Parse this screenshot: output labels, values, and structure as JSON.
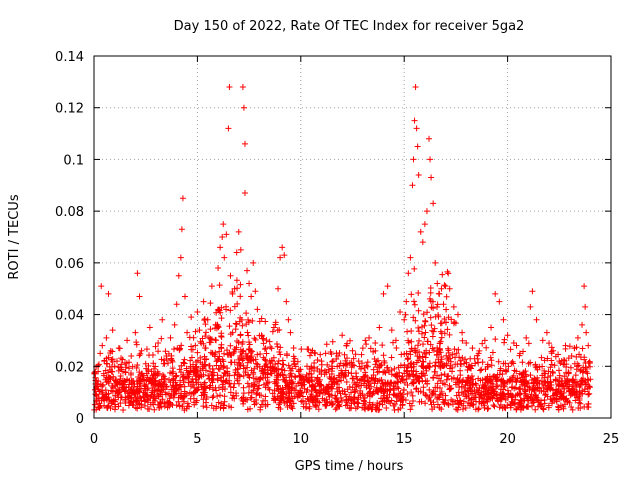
{
  "chart_data": {
    "type": "scatter",
    "title": "Day 150 of 2022, Rate Of TEC Index for receiver 5ga2",
    "xlabel": "GPS time / hours",
    "ylabel": "ROTI / TECUs",
    "xlim": [
      0,
      25
    ],
    "ylim": [
      0,
      0.14
    ],
    "xticks": [
      "0",
      "5",
      "10",
      "15",
      "20",
      "25"
    ],
    "yticks": [
      "0",
      "0.02",
      "0.04",
      "0.06",
      "0.08",
      "0.1",
      "0.12",
      "0.14"
    ],
    "grid": true,
    "marker": "plus",
    "color": "#ff0000",
    "series": [
      {
        "points": [
          [
            0.1,
            0.012
          ],
          [
            0.2,
            0.018
          ],
          [
            0.3,
            0.025
          ],
          [
            0.35,
            0.051
          ],
          [
            0.4,
            0.028
          ],
          [
            0.5,
            0.022
          ],
          [
            0.6,
            0.031
          ],
          [
            0.7,
            0.048
          ],
          [
            0.8,
            0.015
          ],
          [
            0.9,
            0.034
          ],
          [
            1.0,
            0.02
          ],
          [
            1.2,
            0.027
          ],
          [
            1.4,
            0.018
          ],
          [
            1.6,
            0.03
          ],
          [
            1.8,
            0.024
          ],
          [
            2.0,
            0.033
          ],
          [
            2.1,
            0.056
          ],
          [
            2.2,
            0.047
          ],
          [
            2.3,
            0.026
          ],
          [
            2.5,
            0.021
          ],
          [
            2.7,
            0.035
          ],
          [
            2.9,
            0.019
          ],
          [
            3.1,
            0.029
          ],
          [
            3.3,
            0.038
          ],
          [
            3.5,
            0.024
          ],
          [
            3.7,
            0.031
          ],
          [
            3.9,
            0.036
          ],
          [
            4.0,
            0.044
          ],
          [
            4.1,
            0.055
          ],
          [
            4.2,
            0.062
          ],
          [
            4.25,
            0.073
          ],
          [
            4.3,
            0.085
          ],
          [
            4.4,
            0.047
          ],
          [
            4.5,
            0.033
          ],
          [
            4.7,
            0.039
          ],
          [
            4.9,
            0.028
          ],
          [
            5.0,
            0.041
          ],
          [
            5.1,
            0.034
          ],
          [
            5.3,
            0.045
          ],
          [
            5.5,
            0.038
          ],
          [
            5.7,
            0.051
          ],
          [
            5.9,
            0.036
          ],
          [
            6.0,
            0.058
          ],
          [
            6.1,
            0.066
          ],
          [
            6.2,
            0.07
          ],
          [
            6.25,
            0.075
          ],
          [
            6.3,
            0.062
          ],
          [
            6.4,
            0.071
          ],
          [
            6.5,
            0.112
          ],
          [
            6.55,
            0.128
          ],
          [
            6.6,
            0.055
          ],
          [
            6.7,
            0.048
          ],
          [
            6.8,
            0.05
          ],
          [
            6.9,
            0.064
          ],
          [
            7.0,
            0.072
          ],
          [
            7.1,
            0.065
          ],
          [
            7.2,
            0.128
          ],
          [
            7.25,
            0.12
          ],
          [
            7.3,
            0.106
          ],
          [
            7.3,
            0.087
          ],
          [
            7.4,
            0.057
          ],
          [
            7.5,
            0.052
          ],
          [
            7.6,
            0.047
          ],
          [
            7.7,
            0.06
          ],
          [
            7.8,
            0.049
          ],
          [
            7.9,
            0.042
          ],
          [
            8.1,
            0.032
          ],
          [
            8.3,
            0.027
          ],
          [
            8.5,
            0.022
          ],
          [
            8.7,
            0.035
          ],
          [
            8.9,
            0.05
          ],
          [
            9.0,
            0.062
          ],
          [
            9.1,
            0.066
          ],
          [
            9.2,
            0.063
          ],
          [
            9.3,
            0.045
          ],
          [
            9.4,
            0.038
          ],
          [
            9.5,
            0.033
          ],
          [
            9.7,
            0.021
          ],
          [
            9.9,
            0.018
          ],
          [
            10.1,
            0.016
          ],
          [
            10.3,
            0.02
          ],
          [
            10.5,
            0.017
          ],
          [
            10.8,
            0.019
          ],
          [
            11.0,
            0.022
          ],
          [
            11.2,
            0.025
          ],
          [
            11.5,
            0.02
          ],
          [
            11.8,
            0.024
          ],
          [
            12.0,
            0.032
          ],
          [
            12.2,
            0.028
          ],
          [
            12.5,
            0.026
          ],
          [
            12.8,
            0.022
          ],
          [
            13.0,
            0.027
          ],
          [
            13.3,
            0.031
          ],
          [
            13.6,
            0.029
          ],
          [
            13.8,
            0.035
          ],
          [
            14.0,
            0.048
          ],
          [
            14.2,
            0.051
          ],
          [
            14.4,
            0.034
          ],
          [
            14.6,
            0.03
          ],
          [
            14.8,
            0.041
          ],
          [
            15.0,
            0.038
          ],
          [
            15.1,
            0.045
          ],
          [
            15.2,
            0.056
          ],
          [
            15.3,
            0.062
          ],
          [
            15.4,
            0.09
          ],
          [
            15.45,
            0.1
          ],
          [
            15.5,
            0.115
          ],
          [
            15.55,
            0.128
          ],
          [
            15.6,
            0.112
          ],
          [
            15.65,
            0.105
          ],
          [
            15.7,
            0.094
          ],
          [
            15.8,
            0.072
          ],
          [
            15.9,
            0.068
          ],
          [
            16.0,
            0.075
          ],
          [
            16.1,
            0.08
          ],
          [
            16.2,
            0.108
          ],
          [
            16.25,
            0.1
          ],
          [
            16.3,
            0.093
          ],
          [
            16.4,
            0.083
          ],
          [
            16.5,
            0.06
          ],
          [
            16.6,
            0.052
          ],
          [
            16.7,
            0.048
          ],
          [
            16.8,
            0.05
          ],
          [
            16.9,
            0.044
          ],
          [
            17.0,
            0.051
          ],
          [
            17.2,
            0.05
          ],
          [
            17.4,
            0.043
          ],
          [
            17.6,
            0.04
          ],
          [
            17.8,
            0.033
          ],
          [
            18.0,
            0.029
          ],
          [
            18.3,
            0.027
          ],
          [
            18.6,
            0.025
          ],
          [
            18.9,
            0.03
          ],
          [
            19.2,
            0.035
          ],
          [
            19.4,
            0.048
          ],
          [
            19.6,
            0.045
          ],
          [
            19.8,
            0.038
          ],
          [
            20.0,
            0.032
          ],
          [
            20.3,
            0.029
          ],
          [
            20.6,
            0.025
          ],
          [
            20.9,
            0.031
          ],
          [
            21.1,
            0.043
          ],
          [
            21.2,
            0.049
          ],
          [
            21.4,
            0.038
          ],
          [
            21.7,
            0.03
          ],
          [
            21.9,
            0.033
          ],
          [
            22.2,
            0.026
          ],
          [
            22.5,
            0.022
          ],
          [
            22.8,
            0.028
          ],
          [
            23.1,
            0.024
          ],
          [
            23.4,
            0.031
          ],
          [
            23.6,
            0.036
          ],
          [
            23.7,
            0.051
          ],
          [
            23.75,
            0.043
          ],
          [
            23.8,
            0.033
          ],
          [
            23.9,
            0.028
          ],
          [
            24.0,
            0.015
          ]
        ]
      }
    ]
  }
}
